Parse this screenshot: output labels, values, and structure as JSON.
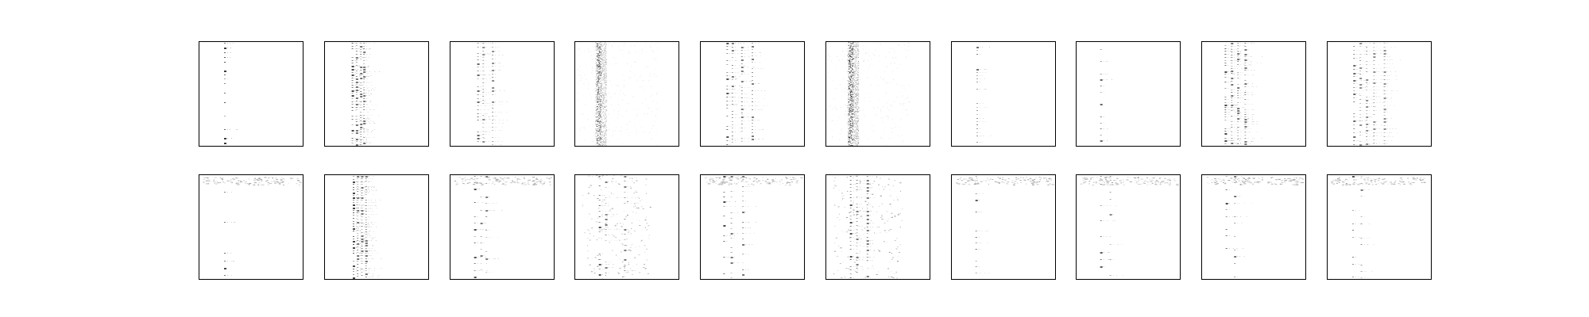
{
  "figure": {
    "background": "#ffffff",
    "colormap": "Greys",
    "rows": 2,
    "cols": 10
  },
  "chart_data": [
    {
      "type": "heatmap",
      "row": 1,
      "col": 1,
      "pattern": "column",
      "column_positions": [
        0.25
      ],
      "density": 0.35,
      "intensity": 0.9,
      "stripe_period": 5,
      "top_band": false,
      "grid": false,
      "ticks": false
    },
    {
      "type": "heatmap",
      "row": 1,
      "col": 2,
      "pattern": "column",
      "column_positions": [
        0.27,
        0.31,
        0.35,
        0.38
      ],
      "density": 0.55,
      "intensity": 0.85,
      "stripe_period": 3,
      "top_band": false,
      "grid": false,
      "ticks": false
    },
    {
      "type": "heatmap",
      "row": 1,
      "col": 3,
      "pattern": "column",
      "column_positions": [
        0.27,
        0.32,
        0.41
      ],
      "density": 0.45,
      "intensity": 0.7,
      "stripe_period": 4,
      "top_band": false,
      "grid": false,
      "ticks": false
    },
    {
      "type": "heatmap",
      "row": 1,
      "col": 4,
      "pattern": "cloud",
      "column_positions": [
        0.23
      ],
      "density": 0.8,
      "intensity": 0.75,
      "stripe_period": 6,
      "top_band": false,
      "grid": false,
      "ticks": false
    },
    {
      "type": "heatmap",
      "row": 1,
      "col": 5,
      "pattern": "column",
      "column_positions": [
        0.26,
        0.31,
        0.4,
        0.5
      ],
      "density": 0.5,
      "intensity": 0.8,
      "stripe_period": 4,
      "top_band": false,
      "grid": false,
      "ticks": false
    },
    {
      "type": "heatmap",
      "row": 1,
      "col": 6,
      "pattern": "cloud",
      "column_positions": [
        0.24
      ],
      "density": 0.85,
      "intensity": 0.85,
      "stripe_period": 6,
      "top_band": false,
      "grid": false,
      "ticks": false
    },
    {
      "type": "heatmap",
      "row": 1,
      "col": 7,
      "pattern": "column",
      "column_positions": [
        0.25
      ],
      "density": 0.35,
      "intensity": 0.65,
      "stripe_period": 4,
      "top_band": false,
      "grid": false,
      "ticks": false
    },
    {
      "type": "heatmap",
      "row": 1,
      "col": 8,
      "pattern": "column",
      "column_positions": [
        0.24
      ],
      "density": 0.2,
      "intensity": 0.7,
      "stripe_period": 7,
      "top_band": false,
      "grid": false,
      "ticks": false
    },
    {
      "type": "heatmap",
      "row": 1,
      "col": 9,
      "pattern": "column",
      "column_positions": [
        0.23,
        0.29,
        0.35,
        0.42
      ],
      "density": 0.55,
      "intensity": 0.85,
      "stripe_period": 3,
      "top_band": false,
      "grid": false,
      "ticks": false
    },
    {
      "type": "heatmap",
      "row": 1,
      "col": 10,
      "pattern": "column",
      "column_positions": [
        0.26,
        0.32,
        0.38,
        0.45,
        0.55
      ],
      "density": 0.5,
      "intensity": 0.7,
      "stripe_period": 4,
      "top_band": false,
      "grid": false,
      "ticks": false
    },
    {
      "type": "heatmap",
      "row": 2,
      "col": 1,
      "pattern": "column",
      "column_positions": [
        0.25
      ],
      "density": 0.25,
      "intensity": 0.85,
      "stripe_period": 9,
      "top_band": true,
      "grid": false,
      "ticks": false
    },
    {
      "type": "heatmap",
      "row": 2,
      "col": 2,
      "pattern": "column",
      "column_positions": [
        0.28,
        0.32,
        0.36,
        0.4
      ],
      "density": 0.6,
      "intensity": 0.85,
      "stripe_period": 3,
      "top_band": false,
      "grid": false,
      "ticks": false
    },
    {
      "type": "heatmap",
      "row": 2,
      "col": 3,
      "pattern": "column",
      "column_positions": [
        0.24,
        0.3,
        0.35
      ],
      "density": 0.3,
      "intensity": 0.8,
      "stripe_period": 8,
      "top_band": true,
      "grid": false,
      "ticks": false
    },
    {
      "type": "heatmap",
      "row": 2,
      "col": 4,
      "pattern": "scatter",
      "column_positions": [
        0.24,
        0.3,
        0.48
      ],
      "density": 0.45,
      "intensity": 0.8,
      "stripe_period": 6,
      "top_band": false,
      "grid": false,
      "ticks": false
    },
    {
      "type": "heatmap",
      "row": 2,
      "col": 5,
      "pattern": "column",
      "column_positions": [
        0.23,
        0.3,
        0.41
      ],
      "density": 0.35,
      "intensity": 0.85,
      "stripe_period": 6,
      "top_band": true,
      "grid": false,
      "ticks": false
    },
    {
      "type": "heatmap",
      "row": 2,
      "col": 6,
      "pattern": "scatter",
      "column_positions": [
        0.24,
        0.3,
        0.4
      ],
      "density": 0.55,
      "intensity": 0.8,
      "stripe_period": 4,
      "top_band": false,
      "grid": false,
      "ticks": false
    },
    {
      "type": "heatmap",
      "row": 2,
      "col": 7,
      "pattern": "column",
      "column_positions": [
        0.24
      ],
      "density": 0.3,
      "intensity": 0.75,
      "stripe_period": 7,
      "top_band": true,
      "grid": false,
      "ticks": false
    },
    {
      "type": "heatmap",
      "row": 2,
      "col": 8,
      "pattern": "column",
      "column_positions": [
        0.24,
        0.33
      ],
      "density": 0.2,
      "intensity": 0.75,
      "stripe_period": 9,
      "top_band": true,
      "grid": false,
      "ticks": false
    },
    {
      "type": "heatmap",
      "row": 2,
      "col": 9,
      "pattern": "column",
      "column_positions": [
        0.24,
        0.32
      ],
      "density": 0.3,
      "intensity": 0.85,
      "stripe_period": 8,
      "top_band": true,
      "grid": false,
      "ticks": false
    },
    {
      "type": "heatmap",
      "row": 2,
      "col": 10,
      "pattern": "column",
      "column_positions": [
        0.25,
        0.33
      ],
      "density": 0.25,
      "intensity": 0.8,
      "stripe_period": 8,
      "top_band": true,
      "grid": false,
      "ticks": false
    }
  ]
}
